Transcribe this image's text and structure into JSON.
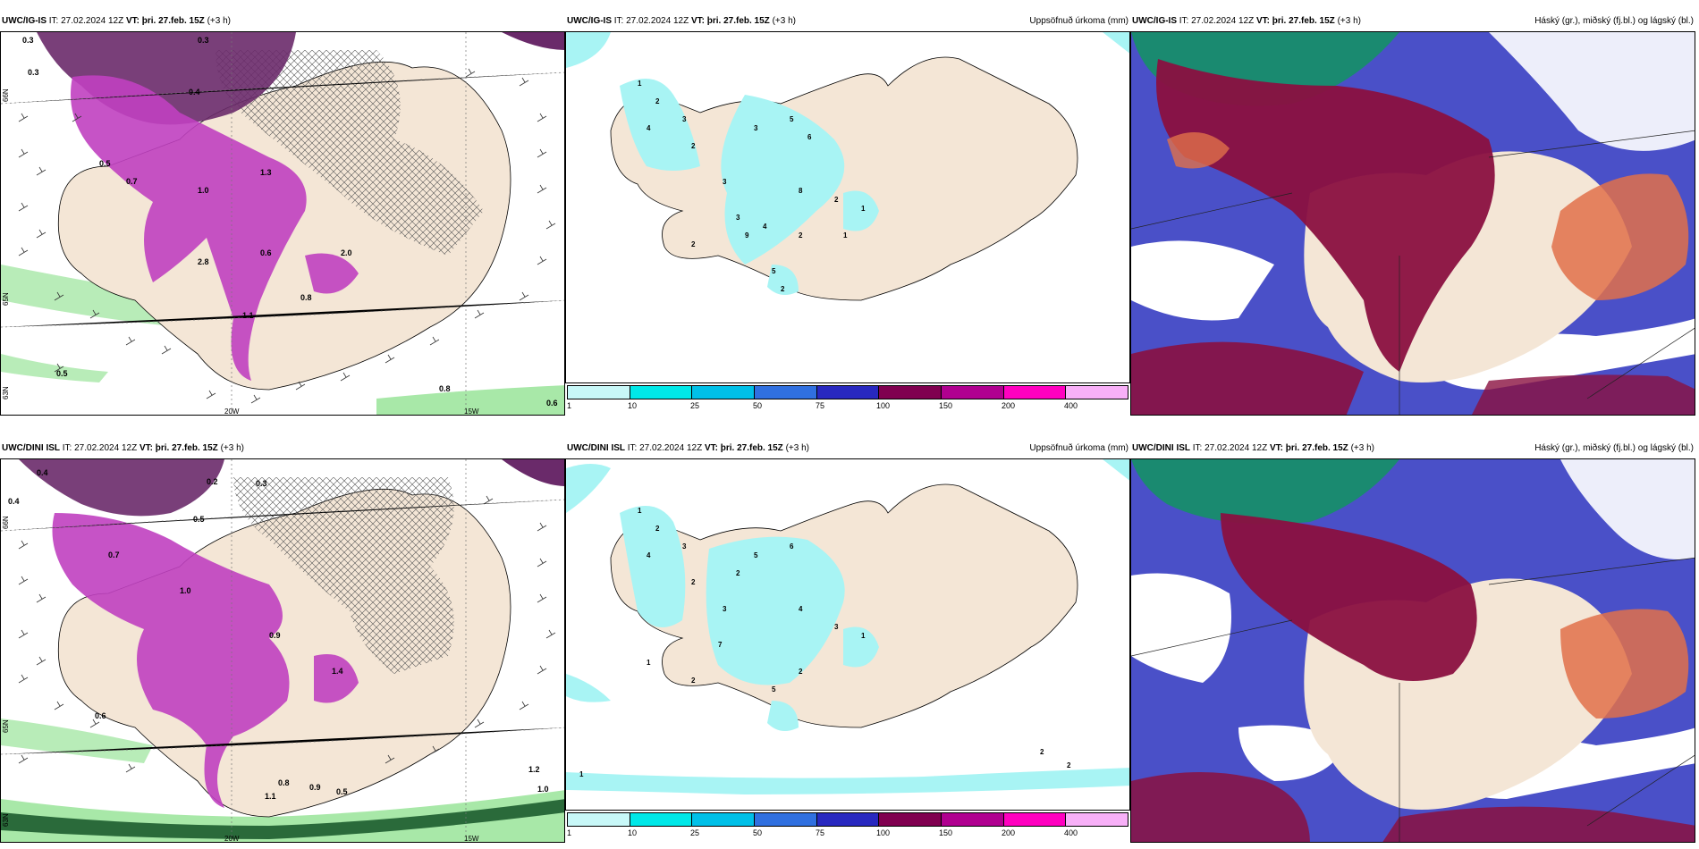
{
  "rows": [
    {
      "wind": {
        "model": "UWC/IG-IS",
        "it": "IT: 27.02.2024 12Z",
        "vt_label": "VT:",
        "vt": "þri. 27.feb. 15Z",
        "lead": "(+3 h)"
      },
      "precip": {
        "model": "UWC/IG-IS",
        "it": "IT: 27.02.2024 12Z",
        "vt_label": "VT:",
        "vt": "þri. 27.feb. 15Z",
        "lead": "(+3 h)",
        "right": "Uppsöfnuð úrkoma (mm)"
      },
      "cloud": {
        "model": "UWC/IG-IS",
        "it": "IT: 27.02.2024 12Z",
        "vt_label": "VT:",
        "vt": "þri. 27.feb. 15Z",
        "lead": "(+3 h)",
        "right": "Háský (gr.), miðský (fj.bl.) og lágský (bl.)"
      },
      "lon_labels": [
        "20W",
        "15W"
      ],
      "lat_labels": [
        "66N",
        "65N",
        "63N"
      ],
      "wind_values": [
        "0.3",
        "0.3",
        "0.3",
        "0.4",
        "0.5",
        "0.7",
        "1.0",
        "1.3",
        "2.0",
        "2.8",
        "0.6",
        "0.8",
        "1.1",
        "0.5",
        "0.8",
        "0.6"
      ],
      "precip_values": [
        "1",
        "2",
        "3",
        "4",
        "2",
        "3",
        "5",
        "6",
        "8",
        "2",
        "1",
        "3",
        "4",
        "2",
        "1",
        "2",
        "3",
        "5",
        "9",
        "2"
      ]
    },
    {
      "wind": {
        "model": "UWC/DINI ISL",
        "it": "IT: 27.02.2024 12Z",
        "vt_label": "VT:",
        "vt": "þri. 27.feb. 15Z",
        "lead": "(+3 h)"
      },
      "precip": {
        "model": "UWC/DINI ISL",
        "it": "IT: 27.02.2024 12Z",
        "vt_label": "VT:",
        "vt": "þri. 27.feb. 15Z",
        "lead": "(+3 h)",
        "right": "Uppsöfnuð úrkoma (mm)"
      },
      "cloud": {
        "model": "UWC/DINI ISL",
        "it": "IT: 27.02.2024 12Z",
        "vt_label": "VT:",
        "vt": "þri. 27.feb. 15Z",
        "lead": "(+3 h)",
        "right": "Háský (gr.), miðský (fj.bl.) og lágský (bl.)"
      },
      "lon_labels": [
        "20W",
        "15W"
      ],
      "lat_labels": [
        "66N",
        "65N",
        "63N"
      ],
      "wind_values": [
        "0.4",
        "0.4",
        "0.2",
        "0.3",
        "0.5",
        "0.7",
        "1.0",
        "1.4",
        "0.9",
        "0.6",
        "0.8",
        "1.1",
        "0.5",
        "1.2",
        "1.0",
        "0.9"
      ],
      "precip_values": [
        "1",
        "2",
        "3",
        "4",
        "2",
        "5",
        "6",
        "7",
        "4",
        "3",
        "1",
        "2",
        "1",
        "2",
        "5",
        "2",
        "3",
        "1",
        "2",
        "2"
      ]
    }
  ],
  "colorbar": {
    "colors": [
      "#c8f8f8",
      "#00e8e8",
      "#00c0e8",
      "#3070e0",
      "#2828c0",
      "#800050",
      "#b00090",
      "#ff00c0",
      "#f8b0f8"
    ],
    "ticks": [
      "1",
      "10",
      "25",
      "50",
      "75",
      "100",
      "150",
      "200",
      "400"
    ]
  },
  "map_colors": {
    "land": "#f4e6d6",
    "wind_precip_light": "#a8e8a8",
    "wind_precip_purple": "#c040c0",
    "wind_precip_dark": "#6a2a6a",
    "precip_cyan": "#a8f4f4",
    "cloud_high": "#1a8a70",
    "cloud_mid": "#8a1040",
    "cloud_low": "#4a50c8",
    "cloud_orange": "#e0704a"
  }
}
